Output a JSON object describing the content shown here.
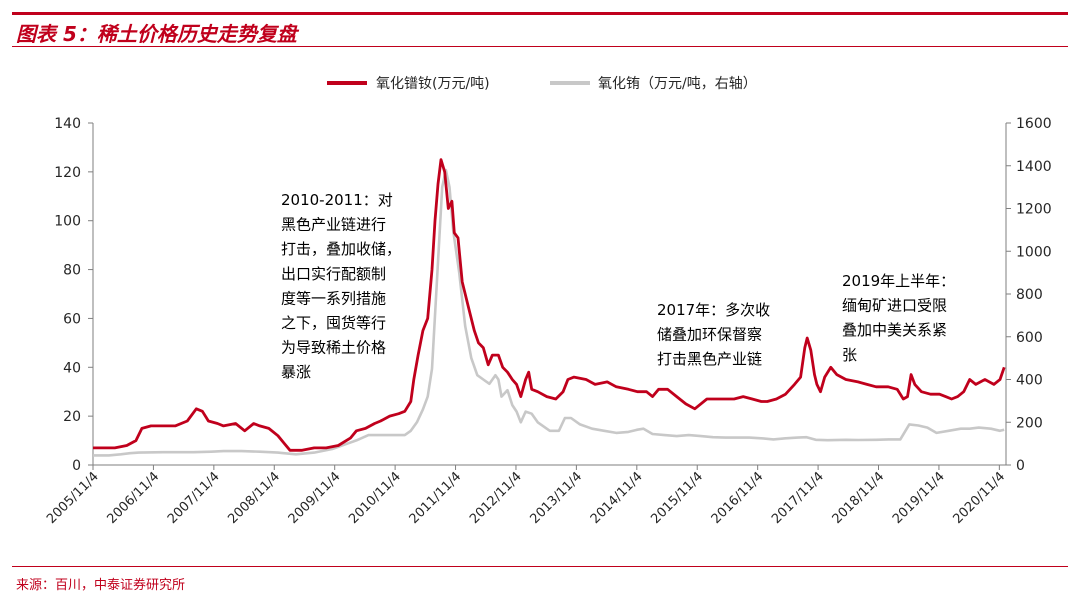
{
  "header": {
    "title": "图表 5：稀土价格历史走势复盘"
  },
  "footer": {
    "source": "来源：百川，中泰证券研究所"
  },
  "colors": {
    "brand_red": "#c0001c",
    "series1": "#c0001c",
    "series2": "#c8c8c8",
    "axis": "#7f7f7f",
    "text": "#262626"
  },
  "chart_data": {
    "type": "line",
    "title": "",
    "legend_position": "top-center",
    "grid": false,
    "x_ticks": [
      "2005/11/4",
      "2006/11/4",
      "2007/11/4",
      "2008/11/4",
      "2009/11/4",
      "2010/11/4",
      "2011/11/4",
      "2012/11/4",
      "2013/11/4",
      "2014/11/4",
      "2015/11/4",
      "2016/11/4",
      "2017/11/4",
      "2018/11/4",
      "2019/11/4",
      "2020/11/4"
    ],
    "x_range": [
      2005.84,
      2020.95
    ],
    "y_left": {
      "range": [
        0,
        140
      ],
      "ticks": [
        "0",
        "20",
        "40",
        "60",
        "80",
        "100",
        "120",
        "140"
      ]
    },
    "y_right": {
      "range": [
        0,
        1600
      ],
      "ticks": [
        "0",
        "200",
        "400",
        "600",
        "800",
        "1000",
        "1200",
        "1400",
        "1600"
      ]
    },
    "series": [
      {
        "name": "氧化镨钕(万元/吨)",
        "axis": "left",
        "points": [
          [
            2005.84,
            7
          ],
          [
            2006.2,
            7
          ],
          [
            2006.4,
            8
          ],
          [
            2006.55,
            10
          ],
          [
            2006.65,
            15
          ],
          [
            2006.8,
            16
          ],
          [
            2007.0,
            16
          ],
          [
            2007.2,
            16
          ],
          [
            2007.4,
            18
          ],
          [
            2007.55,
            23
          ],
          [
            2007.65,
            22
          ],
          [
            2007.75,
            18
          ],
          [
            2007.9,
            17
          ],
          [
            2008.0,
            16
          ],
          [
            2008.2,
            17
          ],
          [
            2008.35,
            14
          ],
          [
            2008.5,
            17
          ],
          [
            2008.6,
            16
          ],
          [
            2008.75,
            15
          ],
          [
            2008.9,
            12
          ],
          [
            2009.0,
            9
          ],
          [
            2009.1,
            6
          ],
          [
            2009.3,
            6
          ],
          [
            2009.5,
            7
          ],
          [
            2009.7,
            7
          ],
          [
            2009.9,
            8
          ],
          [
            2010.1,
            11
          ],
          [
            2010.2,
            14
          ],
          [
            2010.35,
            15
          ],
          [
            2010.5,
            17
          ],
          [
            2010.6,
            18
          ],
          [
            2010.75,
            20
          ],
          [
            2010.9,
            21
          ],
          [
            2011.0,
            22
          ],
          [
            2011.1,
            26
          ],
          [
            2011.15,
            35
          ],
          [
            2011.22,
            45
          ],
          [
            2011.3,
            55
          ],
          [
            2011.38,
            60
          ],
          [
            2011.45,
            80
          ],
          [
            2011.5,
            100
          ],
          [
            2011.55,
            115
          ],
          [
            2011.6,
            125
          ],
          [
            2011.66,
            120
          ],
          [
            2011.72,
            105
          ],
          [
            2011.78,
            108
          ],
          [
            2011.82,
            95
          ],
          [
            2011.88,
            93
          ],
          [
            2011.95,
            75
          ],
          [
            2012.05,
            65
          ],
          [
            2012.15,
            55
          ],
          [
            2012.22,
            50
          ],
          [
            2012.3,
            48
          ],
          [
            2012.38,
            41
          ],
          [
            2012.45,
            45
          ],
          [
            2012.55,
            45
          ],
          [
            2012.62,
            40
          ],
          [
            2012.7,
            38
          ],
          [
            2012.78,
            35
          ],
          [
            2012.85,
            33
          ],
          [
            2012.92,
            28
          ],
          [
            2013.0,
            35
          ],
          [
            2013.05,
            38
          ],
          [
            2013.1,
            31
          ],
          [
            2013.2,
            30
          ],
          [
            2013.35,
            28
          ],
          [
            2013.5,
            27
          ],
          [
            2013.62,
            30
          ],
          [
            2013.7,
            35
          ],
          [
            2013.8,
            36
          ],
          [
            2014.0,
            35
          ],
          [
            2014.15,
            33
          ],
          [
            2014.35,
            34
          ],
          [
            2014.5,
            32
          ],
          [
            2014.7,
            31
          ],
          [
            2014.85,
            30
          ],
          [
            2015.0,
            30
          ],
          [
            2015.1,
            28
          ],
          [
            2015.2,
            31
          ],
          [
            2015.35,
            31
          ],
          [
            2015.5,
            28
          ],
          [
            2015.65,
            25
          ],
          [
            2015.8,
            23
          ],
          [
            2016.0,
            27
          ],
          [
            2016.2,
            27
          ],
          [
            2016.45,
            27
          ],
          [
            2016.6,
            28
          ],
          [
            2016.75,
            27
          ],
          [
            2016.9,
            26
          ],
          [
            2017.0,
            26
          ],
          [
            2017.15,
            27
          ],
          [
            2017.3,
            29
          ],
          [
            2017.45,
            33
          ],
          [
            2017.55,
            36
          ],
          [
            2017.62,
            48
          ],
          [
            2017.66,
            52
          ],
          [
            2017.72,
            47
          ],
          [
            2017.78,
            37
          ],
          [
            2017.82,
            33
          ],
          [
            2017.88,
            30
          ],
          [
            2017.95,
            36
          ],
          [
            2018.05,
            40
          ],
          [
            2018.15,
            37
          ],
          [
            2018.3,
            35
          ],
          [
            2018.5,
            34
          ],
          [
            2018.65,
            33
          ],
          [
            2018.8,
            32
          ],
          [
            2019.0,
            32
          ],
          [
            2019.15,
            31
          ],
          [
            2019.25,
            27
          ],
          [
            2019.32,
            28
          ],
          [
            2019.38,
            37
          ],
          [
            2019.44,
            33
          ],
          [
            2019.55,
            30
          ],
          [
            2019.7,
            29
          ],
          [
            2019.85,
            29
          ],
          [
            2019.95,
            28
          ],
          [
            2020.05,
            27
          ],
          [
            2020.15,
            28
          ],
          [
            2020.25,
            30
          ],
          [
            2020.35,
            35
          ],
          [
            2020.45,
            33
          ],
          [
            2020.6,
            35
          ],
          [
            2020.75,
            33
          ],
          [
            2020.85,
            35
          ],
          [
            2020.92,
            40
          ]
        ]
      },
      {
        "name": "氧化铕（万元/吨，右轴）",
        "axis": "right",
        "points": [
          [
            2005.84,
            45
          ],
          [
            2006.1,
            45
          ],
          [
            2006.3,
            50
          ],
          [
            2006.45,
            55
          ],
          [
            2006.6,
            58
          ],
          [
            2007.0,
            60
          ],
          [
            2007.5,
            60
          ],
          [
            2007.8,
            62
          ],
          [
            2008.0,
            65
          ],
          [
            2008.3,
            65
          ],
          [
            2008.6,
            62
          ],
          [
            2008.9,
            58
          ],
          [
            2009.0,
            55
          ],
          [
            2009.2,
            50
          ],
          [
            2009.5,
            58
          ],
          [
            2009.8,
            75
          ],
          [
            2010.0,
            95
          ],
          [
            2010.2,
            115
          ],
          [
            2010.4,
            140
          ],
          [
            2010.6,
            140
          ],
          [
            2010.8,
            140
          ],
          [
            2011.0,
            140
          ],
          [
            2011.1,
            160
          ],
          [
            2011.2,
            200
          ],
          [
            2011.3,
            260
          ],
          [
            2011.38,
            320
          ],
          [
            2011.45,
            450
          ],
          [
            2011.5,
            700
          ],
          [
            2011.56,
            1000
          ],
          [
            2011.62,
            1300
          ],
          [
            2011.68,
            1380
          ],
          [
            2011.74,
            1300
          ],
          [
            2011.8,
            1100
          ],
          [
            2011.9,
            900
          ],
          [
            2012.0,
            650
          ],
          [
            2012.1,
            500
          ],
          [
            2012.2,
            420
          ],
          [
            2012.3,
            400
          ],
          [
            2012.4,
            380
          ],
          [
            2012.5,
            420
          ],
          [
            2012.55,
            400
          ],
          [
            2012.6,
            320
          ],
          [
            2012.7,
            350
          ],
          [
            2012.78,
            280
          ],
          [
            2012.85,
            250
          ],
          [
            2012.92,
            200
          ],
          [
            2013.0,
            250
          ],
          [
            2013.1,
            240
          ],
          [
            2013.2,
            200
          ],
          [
            2013.4,
            160
          ],
          [
            2013.55,
            160
          ],
          [
            2013.65,
            220
          ],
          [
            2013.75,
            220
          ],
          [
            2013.9,
            190
          ],
          [
            2014.1,
            170
          ],
          [
            2014.3,
            160
          ],
          [
            2014.5,
            150
          ],
          [
            2014.7,
            155
          ],
          [
            2014.85,
            165
          ],
          [
            2014.95,
            170
          ],
          [
            2015.1,
            145
          ],
          [
            2015.3,
            140
          ],
          [
            2015.5,
            135
          ],
          [
            2015.7,
            140
          ],
          [
            2015.9,
            135
          ],
          [
            2016.1,
            130
          ],
          [
            2016.3,
            128
          ],
          [
            2016.5,
            128
          ],
          [
            2016.7,
            128
          ],
          [
            2016.9,
            125
          ],
          [
            2017.1,
            120
          ],
          [
            2017.3,
            125
          ],
          [
            2017.5,
            128
          ],
          [
            2017.65,
            130
          ],
          [
            2017.8,
            118
          ],
          [
            2018.0,
            116
          ],
          [
            2018.3,
            118
          ],
          [
            2018.5,
            117
          ],
          [
            2018.8,
            118
          ],
          [
            2019.0,
            120
          ],
          [
            2019.2,
            120
          ],
          [
            2019.35,
            190
          ],
          [
            2019.5,
            185
          ],
          [
            2019.65,
            175
          ],
          [
            2019.8,
            150
          ],
          [
            2020.0,
            160
          ],
          [
            2020.2,
            170
          ],
          [
            2020.35,
            170
          ],
          [
            2020.5,
            175
          ],
          [
            2020.7,
            170
          ],
          [
            2020.85,
            160
          ],
          [
            2020.92,
            165
          ]
        ]
      }
    ],
    "annotations": [
      {
        "lines": [
          "2010-2011：对",
          "黑色产业链进行",
          "打击，叠加收储，",
          "出口实行配额制",
          "度等一系列措施",
          "之下，囤货等行",
          "为导致稀土价格",
          "暴涨"
        ]
      },
      {
        "lines": [
          "2017年：多次收",
          "储叠加环保督察",
          "打击黑色产业链"
        ]
      },
      {
        "lines": [
          "2019年上半年：",
          "缅甸矿进口受限",
          "叠加中美关系紧",
          "张"
        ]
      }
    ]
  }
}
